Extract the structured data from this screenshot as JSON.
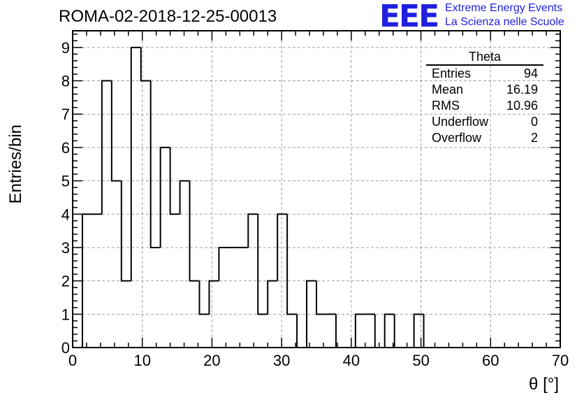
{
  "header": {
    "title": "ROMA-02-2018-12-25-00013",
    "logo_text": "EEE",
    "logo_line1": "Extreme Energy Events",
    "logo_line2": "La Scienza nelle Scuole"
  },
  "stats": {
    "title": "Theta",
    "rows": [
      {
        "label": "Entries",
        "value": "94"
      },
      {
        "label": "Mean",
        "value": "16.19"
      },
      {
        "label": "RMS",
        "value": "10.96"
      },
      {
        "label": "Underflow",
        "value": "0"
      },
      {
        "label": "Overflow",
        "value": "2"
      }
    ]
  },
  "chart_data": {
    "type": "histogram",
    "title": "ROMA-02-2018-12-25-00013",
    "xlabel": "θ [°]",
    "ylabel": "Entries/bin",
    "xlim": [
      0,
      70
    ],
    "ylim": [
      0,
      9.5
    ],
    "xticks": [
      0,
      10,
      20,
      30,
      40,
      50,
      60,
      70
    ],
    "yticks": [
      0,
      1,
      2,
      3,
      4,
      5,
      6,
      7,
      8,
      9
    ],
    "grid": true,
    "bin_start": 1.4,
    "bin_width": 1.4,
    "values": [
      4,
      4,
      8,
      5,
      2,
      9,
      8,
      3,
      6,
      4,
      5,
      2,
      1,
      2,
      3,
      3,
      3,
      4,
      1,
      2,
      4,
      1,
      0,
      2,
      1,
      1,
      0,
      0,
      1,
      1,
      0,
      1,
      0,
      0,
      1,
      0
    ],
    "line_color": "#000000"
  }
}
